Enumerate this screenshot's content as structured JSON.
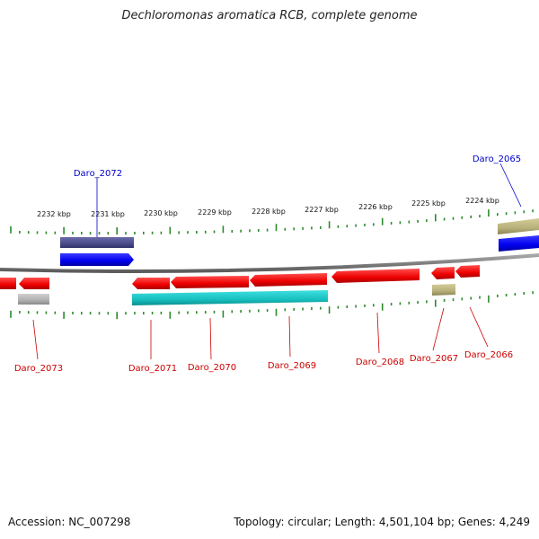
{
  "title": "Dechloromonas aromatica RCB, complete genome",
  "footer": {
    "accession": "Accession: NC_007298",
    "summary": "Topology: circular; Length: 4,501,104 bp; Genes: 4,249"
  },
  "scale_ticks": [
    {
      "label": "2232 kbp"
    },
    {
      "label": "2231 kbp"
    },
    {
      "label": "2230 kbp"
    },
    {
      "label": "2229 kbp"
    },
    {
      "label": "2228 kbp"
    },
    {
      "label": "2227 kbp"
    },
    {
      "label": "2226 kbp"
    },
    {
      "label": "2225 kbp"
    },
    {
      "label": "2224 kbp"
    }
  ],
  "genes": [
    {
      "label": "Daro_2072",
      "strand": "forward",
      "color": "#0000ff",
      "label_color": "#0000cc"
    },
    {
      "label": "Daro_2065",
      "strand": "forward",
      "color": "#0000ff",
      "label_color": "#0000cc"
    },
    {
      "label": "Daro_2073",
      "strand": "reverse",
      "color": "#ff0000",
      "label_color": "#cc0000"
    },
    {
      "label": "Daro_2071",
      "strand": "reverse",
      "color": "#ff0000",
      "label_color": "#cc0000"
    },
    {
      "label": "Daro_2070",
      "strand": "reverse",
      "color": "#ff0000",
      "label_color": "#cc0000"
    },
    {
      "label": "Daro_2069",
      "strand": "reverse",
      "color": "#ff0000",
      "label_color": "#cc0000"
    },
    {
      "label": "Daro_2068",
      "strand": "reverse",
      "color": "#ff0000",
      "label_color": "#cc0000"
    },
    {
      "label": "Daro_2067",
      "strand": "reverse",
      "color": "#ff0000",
      "label_color": "#cc0000"
    },
    {
      "label": "Daro_2066",
      "strand": "reverse",
      "color": "#ff0000",
      "label_color": "#cc0000"
    }
  ],
  "colors": {
    "backbone": "#808080",
    "tick": "#2a8a2a",
    "forward_gene": "#0000ff",
    "reverse_gene": "#ff0000",
    "operon_forward": "#4a4a8a",
    "operon_reverse": "#20c8c8",
    "operon_gray": "#b0b0b0",
    "operon_olive": "#b8b07a"
  }
}
